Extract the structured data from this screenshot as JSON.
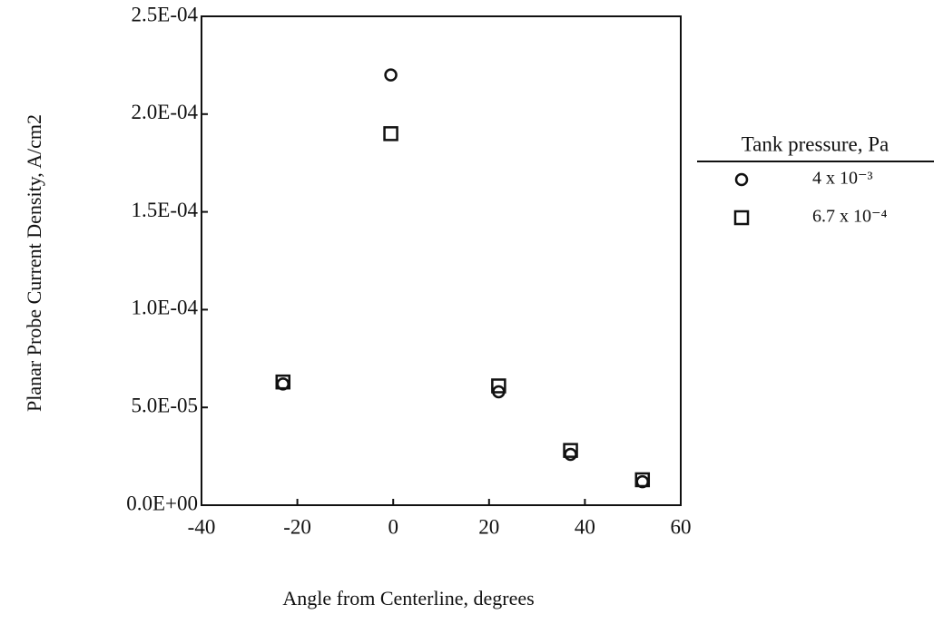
{
  "chart_data": {
    "type": "scatter",
    "x_label": "Angle from Centerline, degrees",
    "y_label": "Planar Probe Current Density, A/cm2",
    "legend_title": "Tank pressure, Pa",
    "legend": "right",
    "xlim": [
      -40,
      60
    ],
    "xticks": [
      -40,
      -20,
      0,
      20,
      40,
      60
    ],
    "ylim": [
      0,
      0.00025
    ],
    "yticks": [
      {
        "value": 0,
        "label": "0.0E+00"
      },
      {
        "value": 5e-05,
        "label": "5.0E-05"
      },
      {
        "value": 0.0001,
        "label": "1.0E-04"
      },
      {
        "value": 0.00015,
        "label": "1.5E-04"
      },
      {
        "value": 0.0002,
        "label": "2.0E-04"
      },
      {
        "value": 0.00025,
        "label": "2.5E-04"
      }
    ],
    "series": [
      {
        "name": "4 x 10⁻³",
        "marker": "circle",
        "color": "#111111",
        "x": [
          -23,
          -0.5,
          22,
          37,
          52
        ],
        "values": [
          6.2e-05,
          0.00022,
          5.8e-05,
          2.6e-05,
          1.2e-05
        ]
      },
      {
        "name": "6.7 x 10⁻⁴",
        "marker": "square",
        "color": "#111111",
        "x": [
          -23,
          -0.5,
          22,
          37,
          52
        ],
        "values": [
          6.3e-05,
          0.00019,
          6.1e-05,
          2.8e-05,
          1.3e-05
        ]
      }
    ]
  }
}
